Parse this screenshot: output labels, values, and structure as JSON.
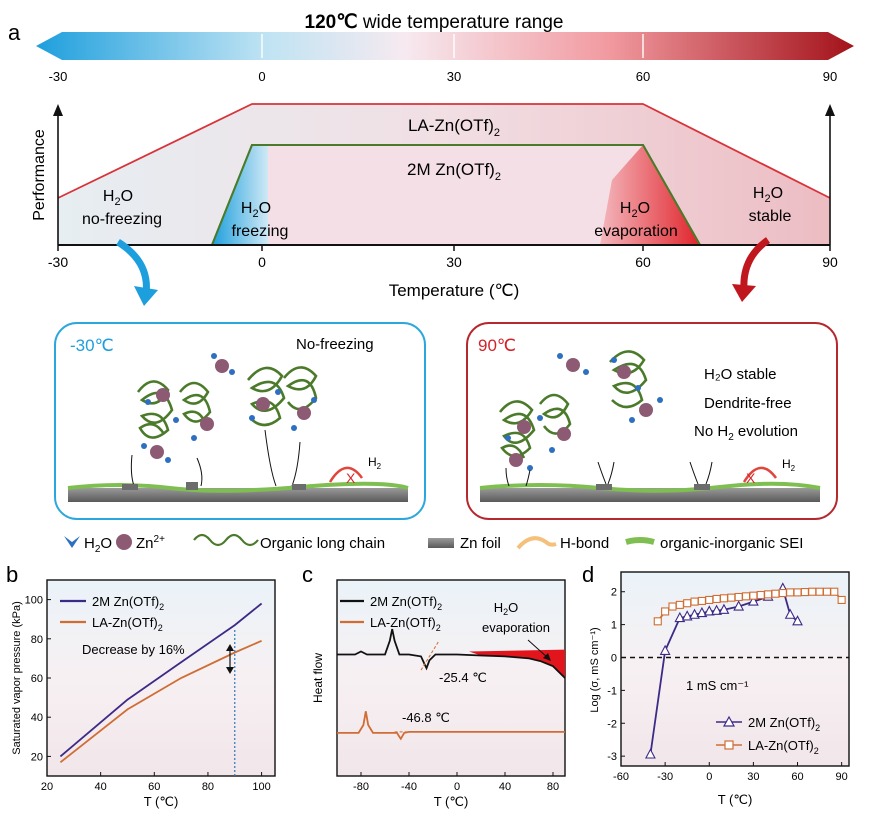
{
  "panel_a": {
    "letter": "a",
    "banner": {
      "bold": "120℃",
      "rest": " wide temperature range",
      "ticks": [
        "-30",
        "0",
        "30",
        "60",
        "90"
      ]
    },
    "perf_axis_label": "Performance",
    "x_ticks": [
      "-30",
      "0",
      "30",
      "60",
      "90"
    ],
    "x_axis_label": "Temperature (℃)",
    "la_label": "LA-Zn(OTf)",
    "la_sub": "2",
    "twoM_label": "2M Zn(OTf)",
    "twoM_sub": "2",
    "h2o_nofreeze": {
      "a": "H",
      "b": "2",
      "c": "O",
      "line2": "no-freezing"
    },
    "h2o_freezing": {
      "a": "H",
      "b": "2",
      "c": "O",
      "line2": "freezing"
    },
    "h2o_evap": {
      "a": "H",
      "b": "2",
      "c": "O",
      "line2": "evaporation"
    },
    "h2o_stable": {
      "a": "H",
      "b": "2",
      "c": "O",
      "line2": "stable"
    },
    "cold_box": {
      "temp": "-30℃",
      "note": "No-freezing",
      "h2": "H",
      "h2sub": "2",
      "x": "X"
    },
    "hot_box": {
      "temp": "90℃",
      "note1": "H₂O stable",
      "note2": "Dendrite-free",
      "note3a": "No H",
      "note3b": "2",
      "note3c": " evolution",
      "h2": "H",
      "h2sub": "2",
      "x": "X"
    },
    "legend": {
      "h2o_a": "H",
      "h2o_b": "2",
      "h2o_c": "O",
      "zn": "Zn",
      "zn_sup": "2+",
      "chain": "Organic long chain",
      "foil": "Zn foil",
      "hbond": "H-bond",
      "sei": "organic-inorganic SEI"
    }
  },
  "colors": {
    "cold": "#1e9fdd",
    "hot": "#c0171f",
    "purple": "#3d2a86",
    "orange": "#cf6d34",
    "green": "#4a7a2a"
  },
  "chart_data": [
    {
      "id": "b",
      "letter": "b",
      "type": "line",
      "xlabel": "T (℃)",
      "ylabel": "Saturated vapor pressure (kPa)",
      "xlim": [
        20,
        105
      ],
      "ylim": [
        10,
        110
      ],
      "xticks": [
        20,
        40,
        60,
        80,
        100
      ],
      "yticks": [
        20,
        40,
        60,
        80,
        100
      ],
      "series": [
        {
          "name": "2M Zn(OTf)",
          "sub": "2",
          "color": "#3d2a86",
          "x": [
            25,
            50,
            70,
            90,
            100
          ],
          "y": [
            20,
            49,
            68,
            87,
            98
          ]
        },
        {
          "name": "LA-Zn(OTf)",
          "sub": "2",
          "color": "#cf6d34",
          "x": [
            25,
            50,
            70,
            90,
            100
          ],
          "y": [
            17,
            44,
            60,
            73,
            79
          ]
        }
      ],
      "annotation": "Decrease by 16%",
      "marker_x": 90
    },
    {
      "id": "c",
      "letter": "c",
      "type": "line",
      "xlabel": "T (℃)",
      "ylabel": "Heat flow",
      "xlim": [
        -100,
        90
      ],
      "ylim": [
        0,
        10
      ],
      "xticks": [
        -80,
        -40,
        0,
        40,
        80
      ],
      "series": [
        {
          "name": "2M Zn(OTf)",
          "sub": "2",
          "color": "#111111",
          "x": [
            -100,
            -85,
            -80,
            -75,
            -60,
            -56,
            -54,
            -52,
            -48,
            -40,
            -30,
            -27,
            -25.4,
            -23,
            -18,
            -10,
            0,
            20,
            40,
            60,
            70,
            80,
            85,
            90
          ],
          "y": [
            6.2,
            6.2,
            6.35,
            6.2,
            6.2,
            6.9,
            7.5,
            6.9,
            6.2,
            6.2,
            6.1,
            5.7,
            5.5,
            5.9,
            6.2,
            6.2,
            6.2,
            6.15,
            6.1,
            6.0,
            5.85,
            5.6,
            5.3,
            5.0
          ]
        },
        {
          "name": "LA-Zn(OTf)",
          "sub": "2",
          "color": "#cf6d34",
          "x": [
            -100,
            -82,
            -78,
            -76,
            -74,
            -70,
            -66,
            -50,
            -48,
            -46.8,
            -44,
            -40,
            0,
            40,
            90
          ],
          "y": [
            2.2,
            2.2,
            2.6,
            3.3,
            2.6,
            2.2,
            2.2,
            2.2,
            2.0,
            1.9,
            2.2,
            2.25,
            2.25,
            2.25,
            2.25
          ]
        }
      ],
      "annotations": [
        "-25.4 ℃",
        "-46.8 ℃"
      ],
      "evap_label": {
        "a": "H",
        "b": "2",
        "c": "O",
        "line2": "evaporation"
      }
    },
    {
      "id": "d",
      "letter": "d",
      "type": "line",
      "xlabel": "T (℃)",
      "ylabel": "Log (σ, mS cm⁻¹)",
      "xlim": [
        -60,
        95
      ],
      "ylim": [
        -3.3,
        2.6
      ],
      "xticks": [
        -60,
        -30,
        0,
        30,
        60,
        90
      ],
      "yticks": [
        -3,
        -2,
        -1,
        0,
        1,
        2
      ],
      "reference": {
        "y": 0,
        "label": "1 mS cm⁻¹"
      },
      "series": [
        {
          "name": "2M Zn(OTf)",
          "sub": "2",
          "color": "#3d2a86",
          "marker": "triangle",
          "x": [
            -40,
            -30,
            -20,
            -15,
            -10,
            -5,
            0,
            5,
            10,
            20,
            30,
            40,
            50,
            55,
            60
          ],
          "y": [
            -2.95,
            0.2,
            1.2,
            1.25,
            1.3,
            1.35,
            1.4,
            1.42,
            1.45,
            1.55,
            1.7,
            1.85,
            2.1,
            1.3,
            1.1
          ]
        },
        {
          "name": "LA-Zn(OTf)",
          "sub": "2",
          "color": "#cf6d34",
          "marker": "square",
          "x": [
            -35,
            -30,
            -25,
            -20,
            -15,
            -10,
            -5,
            0,
            5,
            10,
            15,
            20,
            25,
            30,
            35,
            40,
            45,
            50,
            55,
            60,
            65,
            70,
            75,
            80,
            85,
            90
          ],
          "y": [
            1.1,
            1.4,
            1.55,
            1.6,
            1.65,
            1.7,
            1.72,
            1.75,
            1.78,
            1.8,
            1.82,
            1.84,
            1.86,
            1.88,
            1.9,
            1.92,
            1.94,
            1.96,
            1.98,
            1.98,
            1.99,
            2.0,
            2.0,
            2.0,
            2.0,
            1.75
          ]
        }
      ]
    }
  ]
}
